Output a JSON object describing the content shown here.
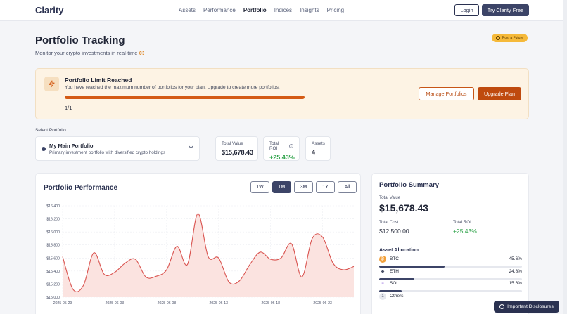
{
  "nav": {
    "logo": "Clarity",
    "links": [
      "Assets",
      "Performance",
      "Portfolio",
      "Indices",
      "Insights",
      "Pricing"
    ],
    "active_link": "Portfolio",
    "login_label": "Login",
    "try_label": "Try Clarity Free"
  },
  "header": {
    "title": "Portfolio Tracking",
    "subtitle": "Monitor your crypto investments in real-time",
    "feature_badge": "Post a Future"
  },
  "limit_banner": {
    "title": "Portfolio Limit Reached",
    "text": "You have reached the maximum number of portfolios for your plan. Upgrade to create more portfolios.",
    "count": "1/1",
    "progress_fraction": 1.0,
    "manage_label": "Manage Portfolios",
    "upgrade_label": "Upgrade Plan"
  },
  "selector": {
    "label": "Select Portfolio",
    "name": "My Main Portfolio",
    "description": "Primary investment portfolio with diversified crypto holdings"
  },
  "stats": {
    "total_value_label": "Total Value",
    "total_value": "$15,678.43",
    "total_roi_label": "Total ROI",
    "total_roi": "+25.43%",
    "assets_label": "Assets",
    "assets": "4"
  },
  "performance": {
    "title": "Portfolio Performance",
    "ranges": [
      "1W",
      "1M",
      "3M",
      "1Y",
      "All"
    ],
    "active_range": "1M"
  },
  "chart_data": {
    "type": "area",
    "title": "Portfolio Performance",
    "xlabel": "",
    "ylabel": "",
    "ylim": [
      15000,
      16400
    ],
    "xlim": [
      "2025-05-29",
      "2025-06-26"
    ],
    "y_ticks": [
      "$16,400",
      "$16,200",
      "$16,000",
      "$15,800",
      "$15,600",
      "$15,400",
      "$15,200",
      "$15,000"
    ],
    "x_ticks": [
      "2025-05-29",
      "2025-06-03",
      "2025-06-08",
      "2025-06-13",
      "2025-06-18",
      "2025-06-23"
    ],
    "grid": true,
    "series": [
      {
        "x": [
          "2025-05-29",
          "2025-05-30",
          "2025-05-31",
          "2025-06-01",
          "2025-06-02",
          "2025-06-03",
          "2025-06-04",
          "2025-06-05",
          "2025-06-06",
          "2025-06-07",
          "2025-06-08",
          "2025-06-09",
          "2025-06-10",
          "2025-06-11",
          "2025-06-12",
          "2025-06-13",
          "2025-06-14",
          "2025-06-15",
          "2025-06-16",
          "2025-06-17",
          "2025-06-18",
          "2025-06-19",
          "2025-06-20",
          "2025-06-21",
          "2025-06-22",
          "2025-06-23",
          "2025-06-24",
          "2025-06-25",
          "2025-06-26"
        ],
        "values": [
          15620,
          15120,
          15180,
          15680,
          15350,
          15380,
          15520,
          15580,
          15310,
          15320,
          15420,
          15780,
          15500,
          16280,
          15620,
          15600,
          15230,
          15250,
          15500,
          15690,
          15580,
          15600,
          15820,
          15310,
          15900,
          15920,
          15520,
          15420,
          15470
        ],
        "color": "#d9534f"
      }
    ]
  },
  "summary": {
    "title": "Portfolio Summary",
    "total_value_label": "Total Value",
    "total_value": "$15,678.43",
    "total_cost_label": "Total Cost",
    "total_cost": "$12,500.00",
    "total_roi_label": "Total ROI",
    "total_roi": "+25.43%",
    "allocation_title": "Asset Allocation",
    "assets": [
      {
        "symbol": "BTC",
        "pct": "45.6%",
        "fraction": 0.456,
        "icon": "bitcoin-icon",
        "icon_glyph": "₿",
        "icon_bg": "#f2a03a",
        "icon_color": "#fff"
      },
      {
        "symbol": "ETH",
        "pct": "24.8%",
        "fraction": 0.248,
        "icon": "ethereum-icon",
        "icon_glyph": "◆",
        "icon_bg": "#ffffff",
        "icon_color": "#4a5168"
      },
      {
        "symbol": "SOL",
        "pct": "15.6%",
        "fraction": 0.156,
        "icon": "solana-icon",
        "icon_glyph": "≡",
        "icon_bg": "#ffffff",
        "icon_color": "#7d4bd6"
      },
      {
        "symbol": "Others",
        "pct": "",
        "fraction": 0.14,
        "icon": "others-icon",
        "icon_glyph": "1",
        "icon_bg": "#e6e8ee",
        "icon_color": "#4a5168"
      }
    ]
  },
  "disclosures_label": "Important Disclosures",
  "colors": {
    "accent": "#3c4467",
    "upgrade": "#bf4a0e",
    "positive": "#2fa34a",
    "chart_line": "#d9534f",
    "chart_fill": "#fbe3e0"
  }
}
